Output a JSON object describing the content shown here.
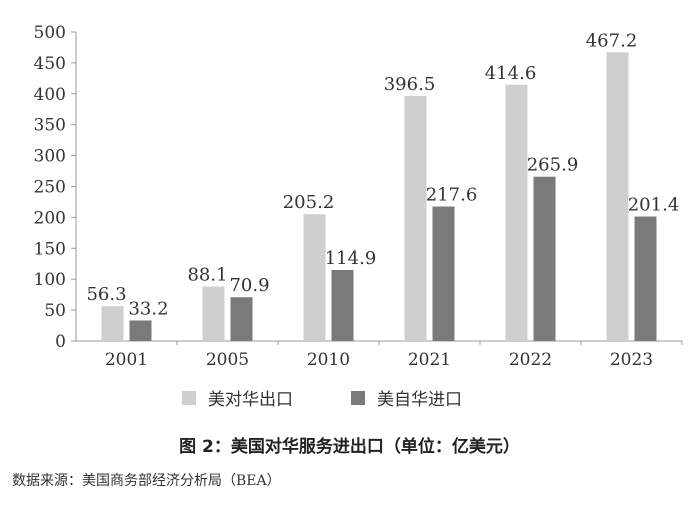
{
  "chart_data": {
    "type": "bar",
    "categories": [
      "2001",
      "2005",
      "2010",
      "2021",
      "2022",
      "2023"
    ],
    "series": [
      {
        "name": "美对华出口",
        "values": [
          56.3,
          88.1,
          205.2,
          396.5,
          414.6,
          467.2
        ],
        "labels": [
          "56.3",
          "88.1",
          "205.2",
          "396.5",
          "414.6",
          "467.2"
        ],
        "color": "#cfcfcf"
      },
      {
        "name": "美自华进口",
        "values": [
          33.2,
          70.9,
          114.9,
          217.6,
          265.9,
          201.4
        ],
        "labels": [
          "33.2",
          "70.9",
          "114.9",
          "217.6",
          "265.9",
          "201.4"
        ],
        "color": "#7a7a7a"
      }
    ],
    "ylim": [
      0,
      500
    ],
    "yticks": [
      "0",
      "50",
      "100",
      "150",
      "200",
      "250",
      "300",
      "350",
      "400",
      "450",
      "500"
    ],
    "grid": false,
    "legend_position": "bottom"
  },
  "caption": "图 2：美国对华服务进出口（单位：亿美元）",
  "source": "数据来源：美国商务部经济分析局（BEA）"
}
